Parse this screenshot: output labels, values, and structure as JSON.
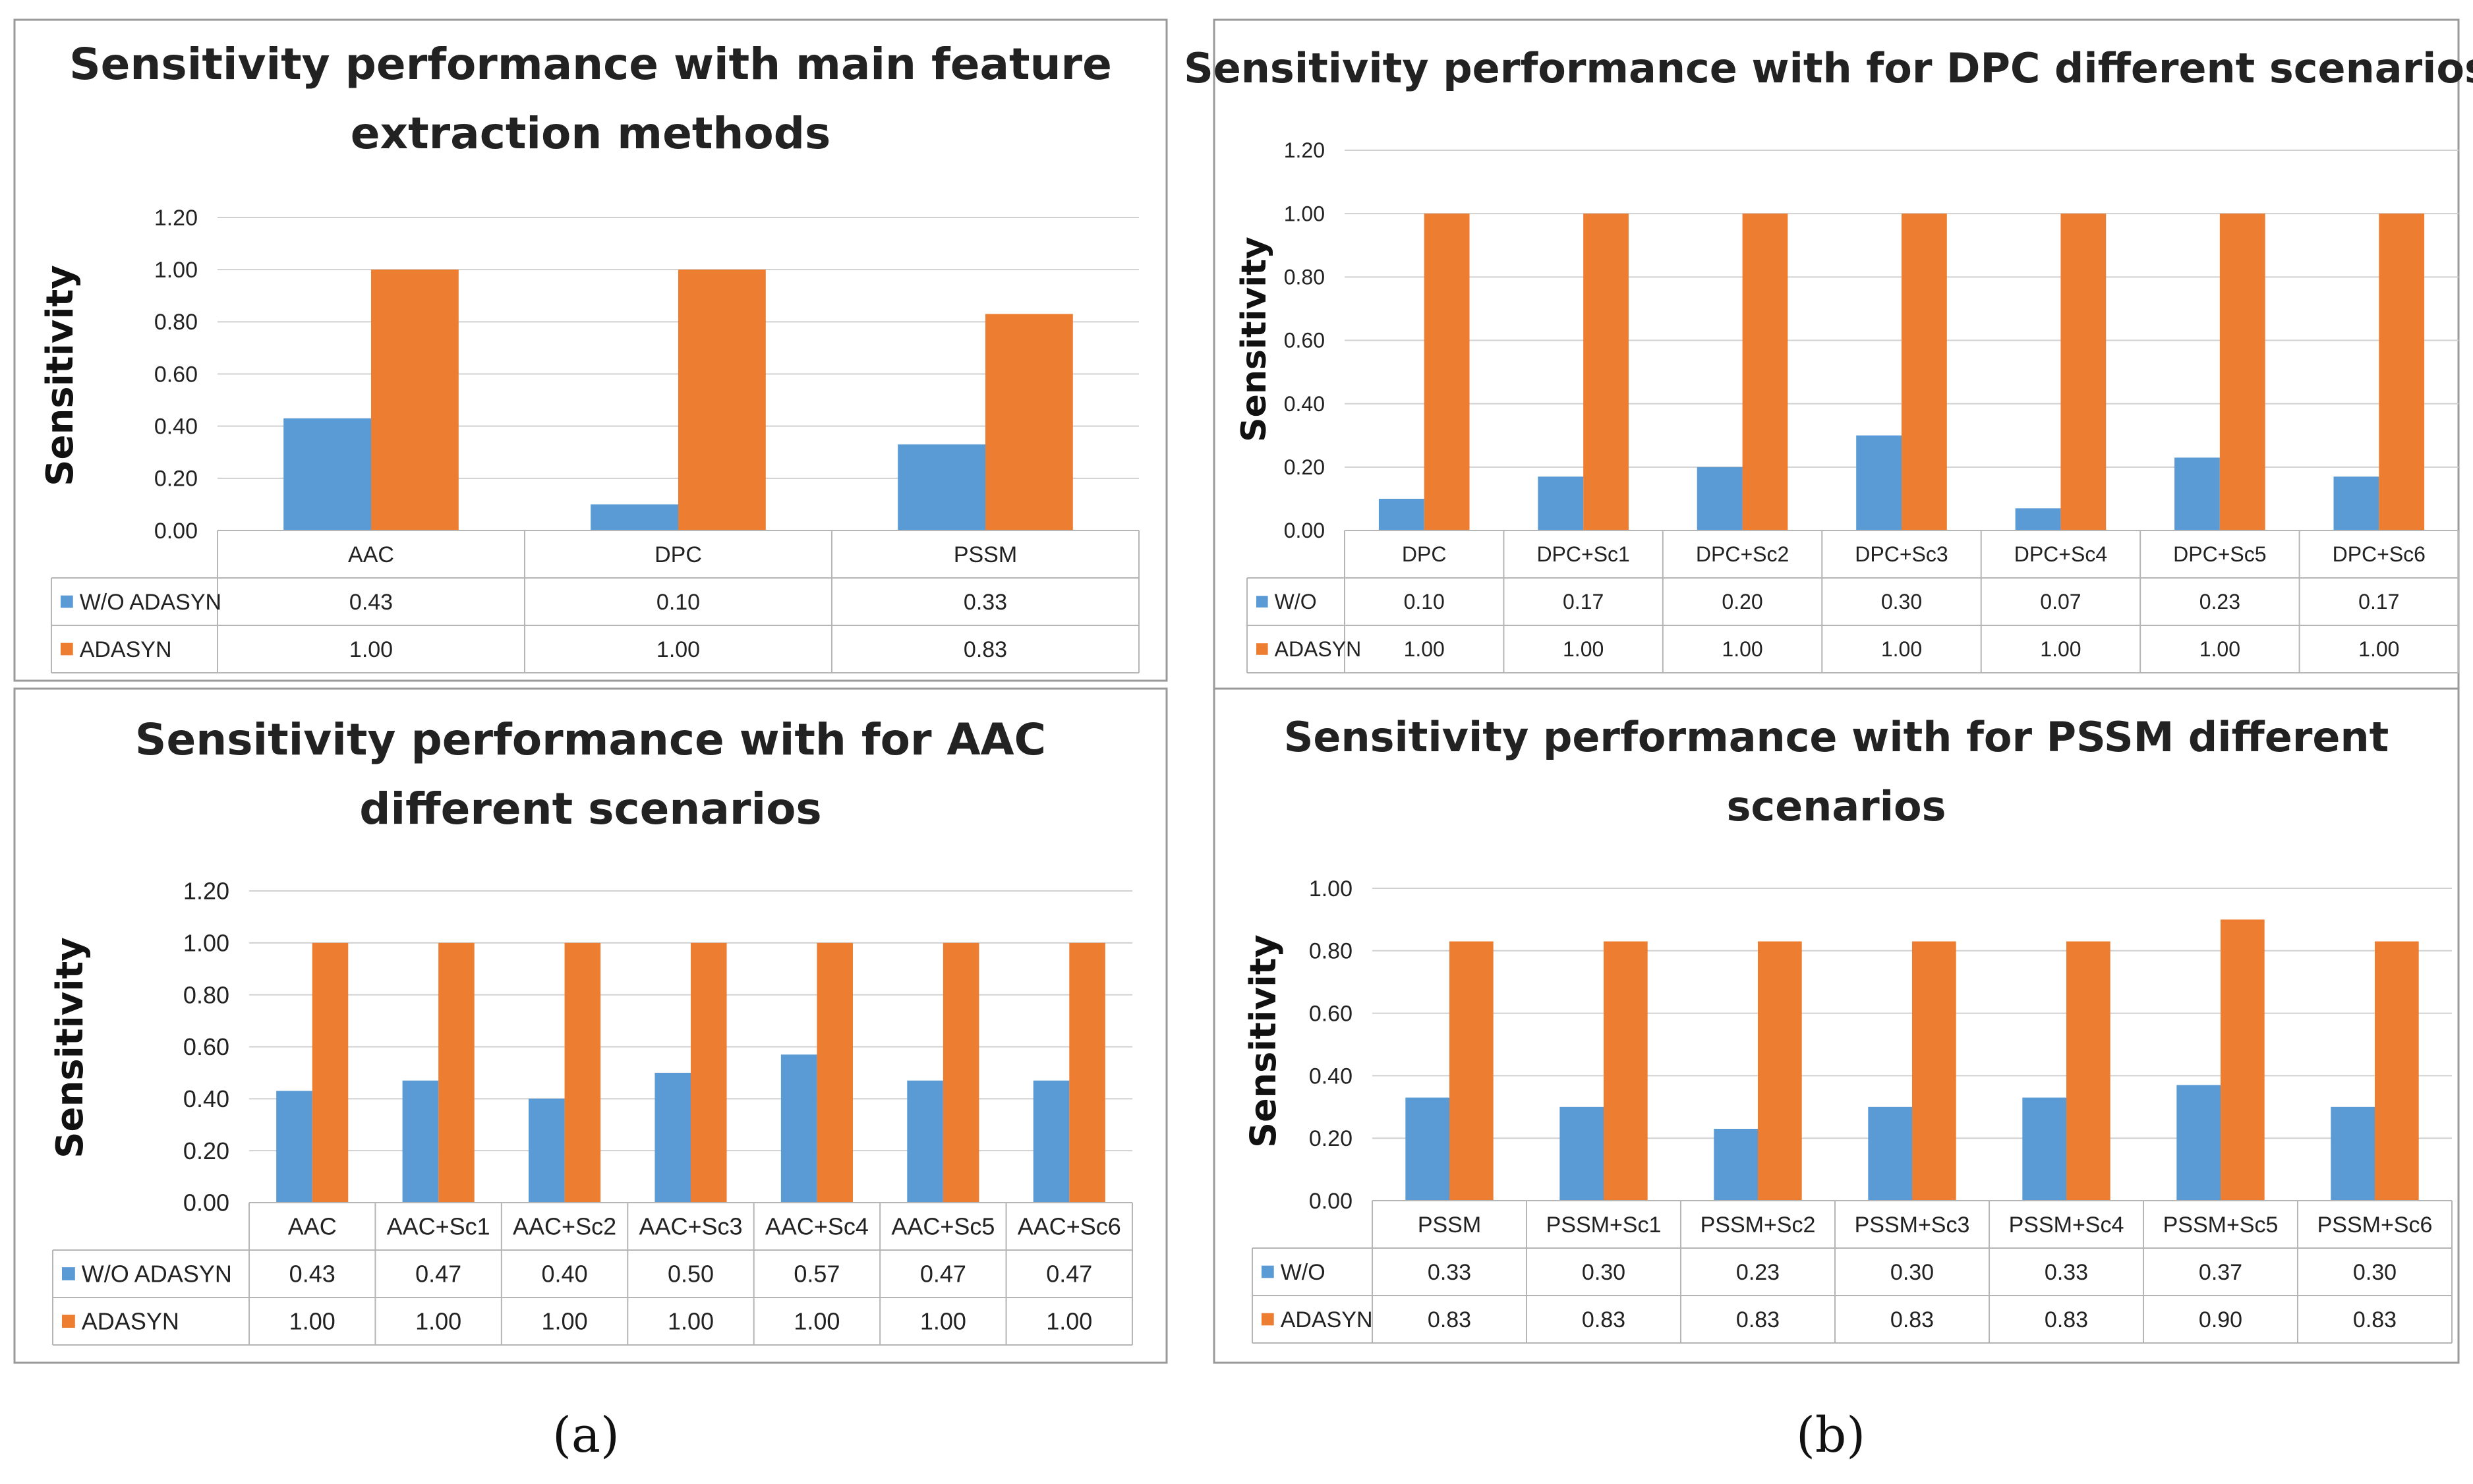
{
  "colors": {
    "series1": "#5b9bd5",
    "series2": "#ed7d31"
  },
  "chart_data": [
    {
      "id": "top-left",
      "type": "bar",
      "title": [
        "Sensitivity performance with main feature",
        "extraction methods"
      ],
      "ylabel": "Sensitivity",
      "ylim": [
        0,
        1.2
      ],
      "yticks": [
        "0.00",
        "0.20",
        "0.40",
        "0.60",
        "0.80",
        "1.00",
        "1.20"
      ],
      "categories": [
        "AAC",
        "DPC",
        "PSSM"
      ],
      "series": [
        {
          "name": "W/O ADASYN",
          "values": [
            0.43,
            0.1,
            0.33
          ],
          "labels": [
            "0.43",
            "0.10",
            "0.33"
          ]
        },
        {
          "name": "ADASYN",
          "values": [
            1.0,
            1.0,
            0.83
          ],
          "labels": [
            "1.00",
            "1.00",
            "0.83"
          ]
        }
      ],
      "grid": true,
      "legend": "data-table-left"
    },
    {
      "id": "top-right",
      "type": "bar",
      "title": [
        "Sensitivity performance with for DPC different scenarios"
      ],
      "ylabel": "Sensitivity",
      "ylim": [
        0,
        1.2
      ],
      "yticks": [
        "0.00",
        "0.20",
        "0.40",
        "0.60",
        "0.80",
        "1.00",
        "1.20"
      ],
      "categories": [
        "DPC",
        "DPC+Sc1",
        "DPC+Sc2",
        "DPC+Sc3",
        "DPC+Sc4",
        "DPC+Sc5",
        "DPC+Sc6"
      ],
      "series": [
        {
          "name": "W/O",
          "values": [
            0.1,
            0.17,
            0.2,
            0.3,
            0.07,
            0.23,
            0.17
          ],
          "labels": [
            "0.10",
            "0.17",
            "0.20",
            "0.30",
            "0.07",
            "0.23",
            "0.17"
          ]
        },
        {
          "name": "ADASYN",
          "values": [
            1.0,
            1.0,
            1.0,
            1.0,
            1.0,
            1.0,
            1.0
          ],
          "labels": [
            "1.00",
            "1.00",
            "1.00",
            "1.00",
            "1.00",
            "1.00",
            "1.00"
          ]
        }
      ],
      "grid": true,
      "legend": "data-table-left"
    },
    {
      "id": "bottom-left",
      "type": "bar",
      "title": [
        "Sensitivity performance with for AAC",
        "different scenarios"
      ],
      "ylabel": "Sensitivity",
      "ylim": [
        0,
        1.2
      ],
      "yticks": [
        "0.00",
        "0.20",
        "0.40",
        "0.60",
        "0.80",
        "1.00",
        "1.20"
      ],
      "categories": [
        "AAC",
        "AAC+Sc1",
        "AAC+Sc2",
        "AAC+Sc3",
        "AAC+Sc4",
        "AAC+Sc5",
        "AAC+Sc6"
      ],
      "series": [
        {
          "name": "W/O ADASYN",
          "values": [
            0.43,
            0.47,
            0.4,
            0.5,
            0.57,
            0.47,
            0.47
          ],
          "labels": [
            "0.43",
            "0.47",
            "0.40",
            "0.50",
            "0.57",
            "0.47",
            "0.47"
          ]
        },
        {
          "name": "ADASYN",
          "values": [
            1.0,
            1.0,
            1.0,
            1.0,
            1.0,
            1.0,
            1.0
          ],
          "labels": [
            "1.00",
            "1.00",
            "1.00",
            "1.00",
            "1.00",
            "1.00",
            "1.00"
          ]
        }
      ],
      "grid": true,
      "legend": "data-table-left"
    },
    {
      "id": "bottom-right",
      "type": "bar",
      "title": [
        "Sensitivity performance with for PSSM different",
        "scenarios"
      ],
      "ylabel": "Sensitivity",
      "ylim": [
        0,
        1.0
      ],
      "yticks": [
        "0.00",
        "0.20",
        "0.40",
        "0.60",
        "0.80",
        "1.00"
      ],
      "categories": [
        "PSSM",
        "PSSM+Sc1",
        "PSSM+Sc2",
        "PSSM+Sc3",
        "PSSM+Sc4",
        "PSSM+Sc5",
        "PSSM+Sc6"
      ],
      "series": [
        {
          "name": "W/O",
          "values": [
            0.33,
            0.3,
            0.23,
            0.3,
            0.33,
            0.37,
            0.3
          ],
          "labels": [
            "0.33",
            "0.30",
            "0.23",
            "0.30",
            "0.33",
            "0.37",
            "0.30"
          ]
        },
        {
          "name": "ADASYN",
          "values": [
            0.83,
            0.83,
            0.83,
            0.83,
            0.83,
            0.9,
            0.83
          ],
          "labels": [
            "0.83",
            "0.83",
            "0.83",
            "0.83",
            "0.83",
            "0.90",
            "0.83"
          ]
        }
      ],
      "grid": true,
      "legend": "data-table-left"
    }
  ],
  "panel_labels": {
    "a": "(a)",
    "b": "(b)"
  }
}
